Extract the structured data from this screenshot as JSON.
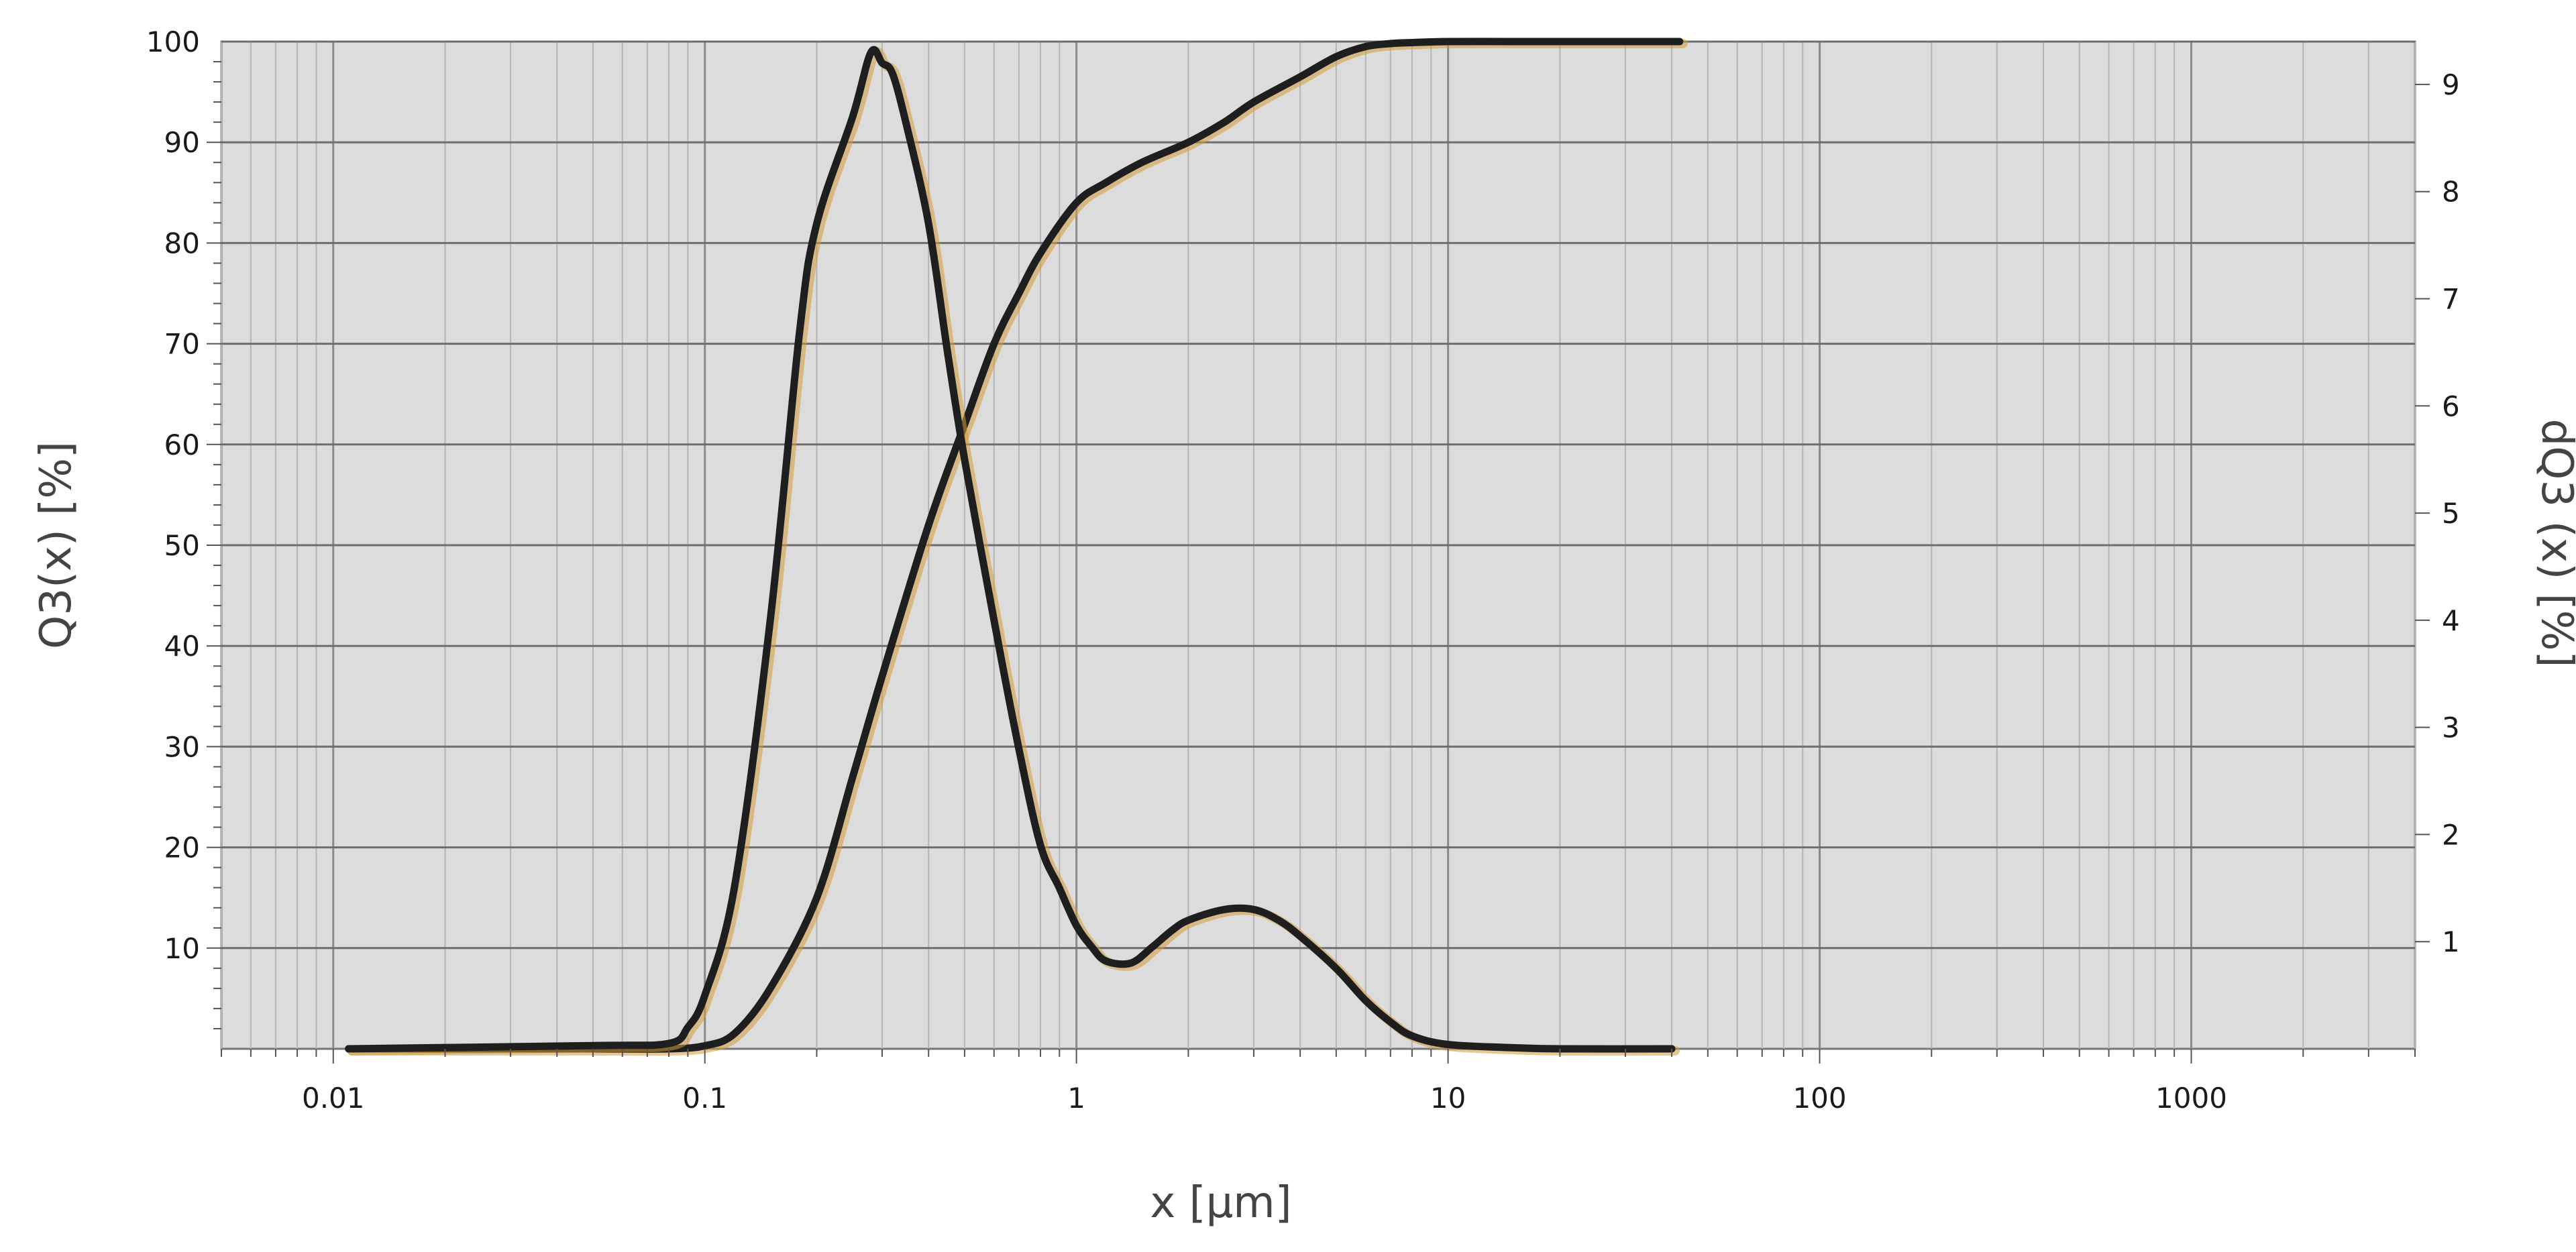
{
  "chart_data": {
    "type": "line",
    "title": "",
    "xlabel": "x [µm]",
    "ylabel": "Q3(x) [%]",
    "y2label": "dQ3 (x) [%]",
    "x_scale": "log",
    "xlim": [
      0.005,
      4000
    ],
    "ylim": [
      0,
      100
    ],
    "y2lim": [
      0,
      9.4
    ],
    "grid": true,
    "legend": "none",
    "x_ticks": [
      "0.01",
      "0.1",
      "1",
      "10",
      "100",
      "1000"
    ],
    "x_tick_values": [
      0.01,
      0.1,
      1,
      10,
      100,
      1000
    ],
    "y_ticks": [
      "10",
      "20",
      "30",
      "40",
      "50",
      "60",
      "70",
      "80",
      "90",
      "100"
    ],
    "y_tick_values": [
      10,
      20,
      30,
      40,
      50,
      60,
      70,
      80,
      90,
      100
    ],
    "y2_ticks": [
      "1",
      "2",
      "3",
      "4",
      "5",
      "6",
      "7",
      "8",
      "9"
    ],
    "y2_tick_values": [
      1,
      2,
      3,
      4,
      5,
      6,
      7,
      8,
      9
    ],
    "series": [
      {
        "axis": "left",
        "x": [
          0.011,
          0.05,
          0.08,
          0.1,
          0.12,
          0.15,
          0.2,
          0.25,
          0.3,
          0.4,
          0.5,
          0.6,
          0.7,
          0.8,
          1.0,
          1.2,
          1.5,
          2.0,
          2.5,
          3.0,
          4.0,
          5.0,
          6.0,
          7.0,
          8.0,
          10,
          15,
          20,
          30,
          42
        ],
        "y": [
          0,
          0,
          0,
          0.3,
          1.5,
          6,
          15,
          27,
          37,
          52,
          62,
          70,
          75,
          79,
          84,
          86,
          88,
          90,
          92,
          94,
          96.5,
          98.5,
          99.5,
          99.8,
          99.9,
          100,
          100,
          100,
          100,
          100
        ]
      },
      {
        "axis": "right",
        "x": [
          0.011,
          0.05,
          0.08,
          0.09,
          0.1,
          0.12,
          0.15,
          0.18,
          0.2,
          0.25,
          0.28,
          0.3,
          0.32,
          0.35,
          0.4,
          0.45,
          0.5,
          0.6,
          0.7,
          0.8,
          0.9,
          1.0,
          1.1,
          1.2,
          1.4,
          1.6,
          1.8,
          2.0,
          2.5,
          3.0,
          3.5,
          4.0,
          5.0,
          6.0,
          7.0,
          8.0,
          10,
          15,
          20,
          40
        ],
        "y": [
          0,
          0.03,
          0.05,
          0.2,
          0.5,
          1.5,
          4.0,
          6.7,
          7.7,
          8.7,
          9.3,
          9.2,
          9.1,
          8.6,
          7.7,
          6.5,
          5.5,
          4.0,
          2.8,
          1.9,
          1.5,
          1.15,
          0.95,
          0.82,
          0.8,
          0.95,
          1.1,
          1.2,
          1.3,
          1.3,
          1.2,
          1.05,
          0.75,
          0.45,
          0.25,
          0.12,
          0.04,
          0.01,
          0,
          0
        ]
      }
    ]
  }
}
